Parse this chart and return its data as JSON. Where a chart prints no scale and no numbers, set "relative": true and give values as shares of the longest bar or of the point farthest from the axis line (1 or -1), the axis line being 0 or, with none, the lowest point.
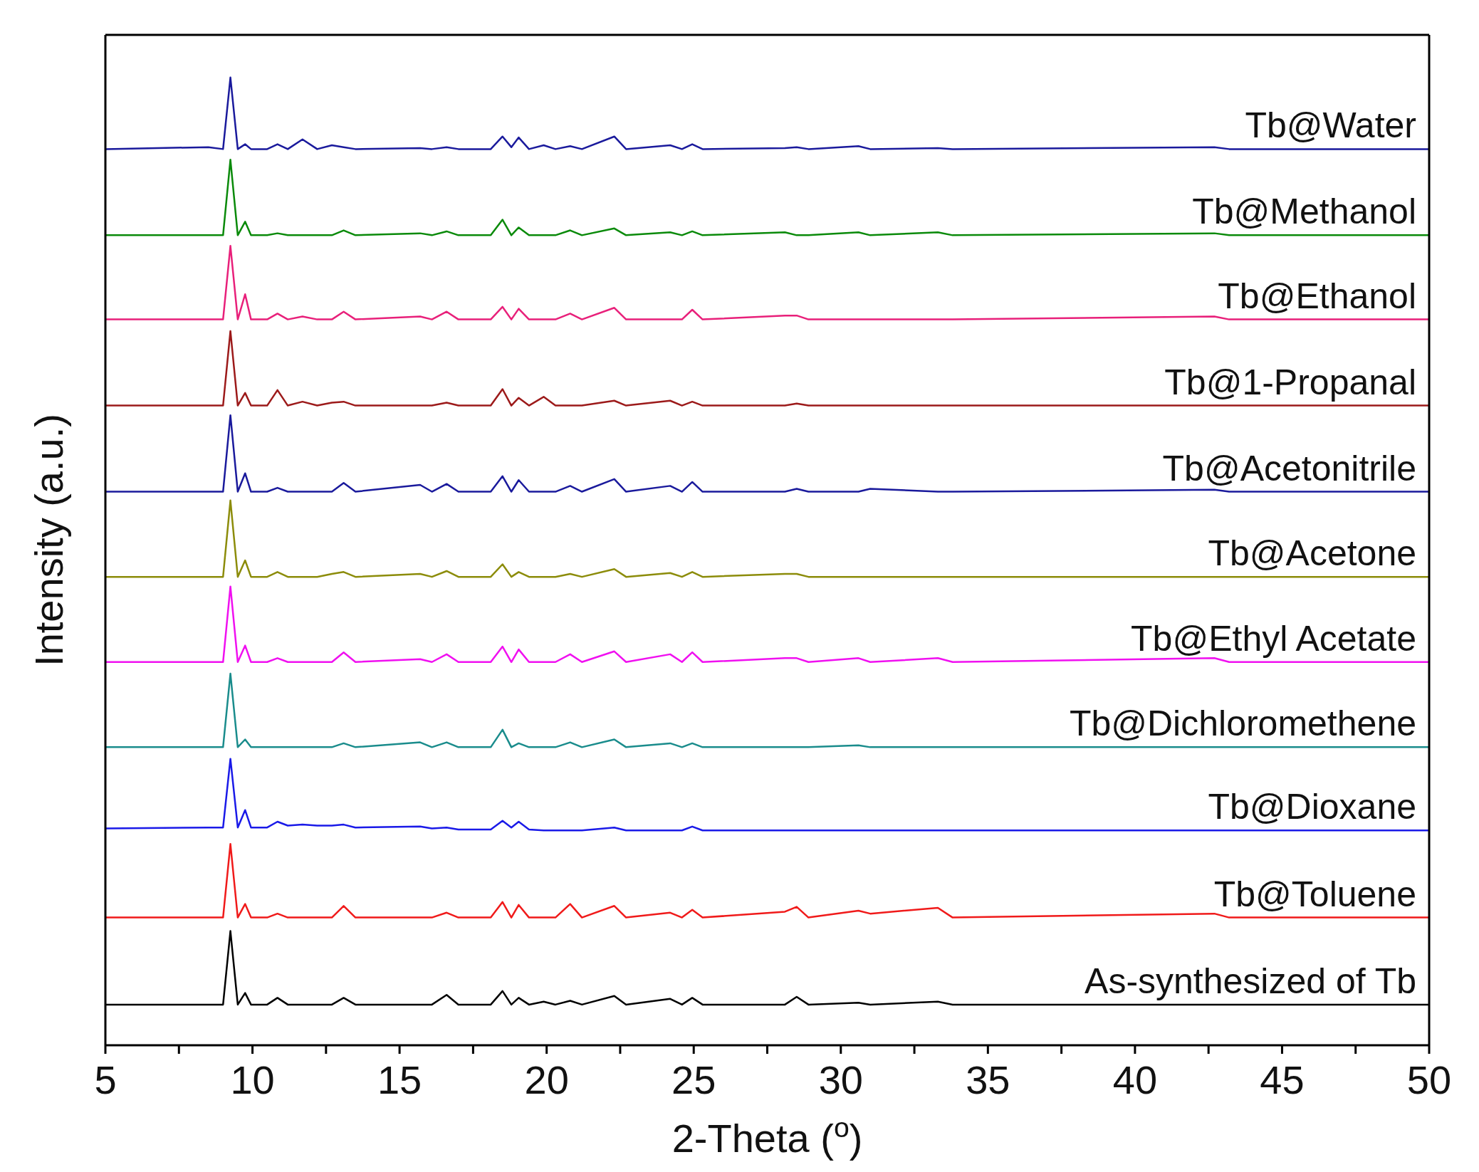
{
  "chart_data": {
    "type": "line",
    "relative": true,
    "xlabel": "2-Theta ($^{o}$)",
    "ylabel": "Intensity (a.u.)",
    "marker": "none",
    "line_style": "solid",
    "xlim": [
      5,
      50
    ],
    "xticks": [
      5,
      {
        "value": 7.5,
        "label": null
      },
      10,
      {
        "value": 12.5,
        "label": null
      },
      15,
      {
        "value": 17.5,
        "label": null
      },
      20,
      {
        "value": 22.5,
        "label": null
      },
      25,
      {
        "value": 27.5,
        "label": null
      },
      30,
      {
        "value": 32.5,
        "label": null
      },
      35,
      {
        "value": 37.5,
        "label": null
      },
      40,
      {
        "value": 42.5,
        "label": null
      },
      45,
      {
        "value": 47.5,
        "label": null
      },
      50
    ],
    "x": [
      5,
      8.5,
      9.0,
      9.25,
      9.5,
      9.75,
      9.95,
      10.5,
      10.85,
      11.2,
      11.7,
      12.2,
      12.7,
      13.1,
      13.5,
      15.7,
      16.1,
      16.6,
      17,
      18.1,
      18.5,
      18.8,
      19.05,
      19.4,
      19.9,
      20.3,
      20.8,
      21.2,
      22.3,
      22.7,
      24.2,
      24.6,
      24.95,
      25.3,
      28.1,
      28.5,
      28.9,
      30.6,
      31.0,
      33.3,
      33.8,
      42.7,
      43.2,
      50
    ],
    "series": [
      {
        "name": "Tb@Water",
        "color": "#1a1a9c",
        "values": [
          0.926,
          0.928,
          0.926,
          1,
          0.926,
          0.931,
          0.926,
          0.926,
          0.931,
          0.926,
          0.936,
          0.926,
          0.93,
          0.928,
          0.926,
          0.927,
          0.926,
          0.928,
          0.926,
          0.926,
          0.939,
          0.928,
          0.938,
          0.926,
          0.93,
          0.926,
          0.929,
          0.926,
          0.939,
          0.926,
          0.93,
          0.926,
          0.931,
          0.926,
          0.927,
          0.928,
          0.926,
          0.929,
          0.926,
          0.927,
          0.926,
          0.928,
          0.926,
          0.926
        ]
      },
      {
        "name": "Tb@Methanol",
        "color": "#0a8a0a",
        "values": [
          0.837,
          0.837,
          0.837,
          0.915,
          0.837,
          0.851,
          0.837,
          0.837,
          0.839,
          0.837,
          0.837,
          0.837,
          0.837,
          0.842,
          0.837,
          0.839,
          0.837,
          0.841,
          0.837,
          0.837,
          0.853,
          0.837,
          0.845,
          0.837,
          0.837,
          0.837,
          0.842,
          0.837,
          0.844,
          0.837,
          0.84,
          0.837,
          0.841,
          0.837,
          0.84,
          0.837,
          0.837,
          0.84,
          0.837,
          0.84,
          0.837,
          0.839,
          0.837,
          0.837
        ]
      },
      {
        "name": "Tb@Ethanol",
        "color": "#e8207a",
        "values": [
          0.75,
          0.75,
          0.75,
          0.826,
          0.75,
          0.776,
          0.75,
          0.75,
          0.756,
          0.75,
          0.753,
          0.75,
          0.75,
          0.758,
          0.75,
          0.753,
          0.75,
          0.758,
          0.75,
          0.75,
          0.763,
          0.75,
          0.761,
          0.75,
          0.75,
          0.75,
          0.756,
          0.75,
          0.762,
          0.75,
          0.75,
          0.75,
          0.76,
          0.75,
          0.754,
          0.754,
          0.75,
          0.75,
          0.75,
          0.75,
          0.75,
          0.753,
          0.75,
          0.75
        ]
      },
      {
        "name": "Tb@1-Propanal",
        "color": "#9c1a1a",
        "values": [
          0.661,
          0.661,
          0.661,
          0.738,
          0.661,
          0.674,
          0.661,
          0.661,
          0.677,
          0.661,
          0.665,
          0.661,
          0.664,
          0.665,
          0.661,
          0.661,
          0.661,
          0.664,
          0.661,
          0.661,
          0.678,
          0.661,
          0.669,
          0.661,
          0.67,
          0.661,
          0.661,
          0.661,
          0.666,
          0.661,
          0.666,
          0.661,
          0.665,
          0.661,
          0.661,
          0.663,
          0.661,
          0.661,
          0.661,
          0.661,
          0.661,
          0.661,
          0.661,
          0.661
        ]
      },
      {
        "name": "Tb@Acetonitrile",
        "color": "#1a1a9c",
        "values": [
          0.572,
          0.572,
          0.572,
          0.651,
          0.572,
          0.591,
          0.572,
          0.572,
          0.576,
          0.572,
          0.572,
          0.572,
          0.572,
          0.581,
          0.572,
          0.579,
          0.572,
          0.58,
          0.572,
          0.572,
          0.588,
          0.572,
          0.584,
          0.572,
          0.572,
          0.572,
          0.578,
          0.572,
          0.585,
          0.572,
          0.578,
          0.572,
          0.582,
          0.572,
          0.572,
          0.575,
          0.572,
          0.572,
          0.575,
          0.572,
          0.572,
          0.574,
          0.572,
          0.572
        ]
      },
      {
        "name": "Tb@Acetone",
        "color": "#8c8c0a",
        "values": [
          0.484,
          0.484,
          0.484,
          0.563,
          0.484,
          0.501,
          0.484,
          0.484,
          0.489,
          0.484,
          0.484,
          0.484,
          0.487,
          0.489,
          0.484,
          0.487,
          0.484,
          0.49,
          0.484,
          0.484,
          0.497,
          0.484,
          0.489,
          0.484,
          0.484,
          0.484,
          0.487,
          0.484,
          0.492,
          0.484,
          0.488,
          0.484,
          0.489,
          0.484,
          0.487,
          0.487,
          0.484,
          0.484,
          0.484,
          0.484,
          0.484,
          0.484,
          0.484,
          0.484
        ]
      },
      {
        "name": "Tb@Ethyl Acetate",
        "color": "#f010f0",
        "values": [
          0.396,
          0.396,
          0.396,
          0.474,
          0.396,
          0.413,
          0.396,
          0.396,
          0.4,
          0.396,
          0.396,
          0.396,
          0.396,
          0.406,
          0.396,
          0.399,
          0.396,
          0.404,
          0.396,
          0.396,
          0.412,
          0.396,
          0.409,
          0.396,
          0.396,
          0.396,
          0.404,
          0.396,
          0.407,
          0.396,
          0.404,
          0.396,
          0.406,
          0.396,
          0.4,
          0.4,
          0.396,
          0.4,
          0.396,
          0.4,
          0.396,
          0.4,
          0.396,
          0.396
        ]
      },
      {
        "name": "Tb@Dichloromethene",
        "color": "#1a8c8c",
        "values": [
          0.308,
          0.308,
          0.308,
          0.384,
          0.308,
          0.316,
          0.308,
          0.308,
          0.308,
          0.308,
          0.308,
          0.308,
          0.308,
          0.312,
          0.308,
          0.313,
          0.308,
          0.313,
          0.308,
          0.308,
          0.326,
          0.308,
          0.312,
          0.308,
          0.308,
          0.308,
          0.313,
          0.308,
          0.316,
          0.308,
          0.312,
          0.308,
          0.312,
          0.308,
          0.308,
          0.308,
          0.308,
          0.31,
          0.308,
          0.308,
          0.308,
          0.308,
          0.308,
          0.308
        ]
      },
      {
        "name": "Tb@Dioxane",
        "color": "#1a1ae8",
        "values": [
          0.224,
          0.225,
          0.225,
          0.296,
          0.225,
          0.243,
          0.225,
          0.225,
          0.231,
          0.227,
          0.228,
          0.227,
          0.227,
          0.228,
          0.225,
          0.226,
          0.224,
          0.225,
          0.223,
          0.223,
          0.232,
          0.225,
          0.231,
          0.223,
          0.222,
          0.222,
          0.222,
          0.222,
          0.225,
          0.222,
          0.222,
          0.222,
          0.226,
          0.222,
          0.222,
          0.222,
          0.222,
          0.222,
          0.222,
          0.222,
          0.222,
          0.222,
          0.222,
          0.222
        ]
      },
      {
        "name": "Tb@Toluene",
        "color": "#f01a1a",
        "values": [
          0.132,
          0.132,
          0.132,
          0.208,
          0.132,
          0.146,
          0.132,
          0.132,
          0.136,
          0.132,
          0.132,
          0.132,
          0.132,
          0.144,
          0.132,
          0.132,
          0.132,
          0.137,
          0.132,
          0.132,
          0.148,
          0.132,
          0.145,
          0.132,
          0.132,
          0.132,
          0.146,
          0.132,
          0.144,
          0.132,
          0.137,
          0.132,
          0.14,
          0.132,
          0.138,
          0.143,
          0.132,
          0.139,
          0.136,
          0.142,
          0.132,
          0.136,
          0.132,
          0.132
        ]
      },
      {
        "name": "As-synthesized of Tb",
        "color": "#000000",
        "values": [
          0.042,
          0.042,
          0.042,
          0.118,
          0.042,
          0.054,
          0.042,
          0.042,
          0.049,
          0.042,
          0.042,
          0.042,
          0.042,
          0.049,
          0.042,
          0.042,
          0.042,
          0.052,
          0.042,
          0.042,
          0.056,
          0.042,
          0.049,
          0.042,
          0.045,
          0.042,
          0.046,
          0.042,
          0.051,
          0.042,
          0.048,
          0.042,
          0.049,
          0.042,
          0.042,
          0.05,
          0.042,
          0.044,
          0.042,
          0.045,
          0.042,
          0.042,
          0.042,
          0.042
        ]
      }
    ]
  }
}
